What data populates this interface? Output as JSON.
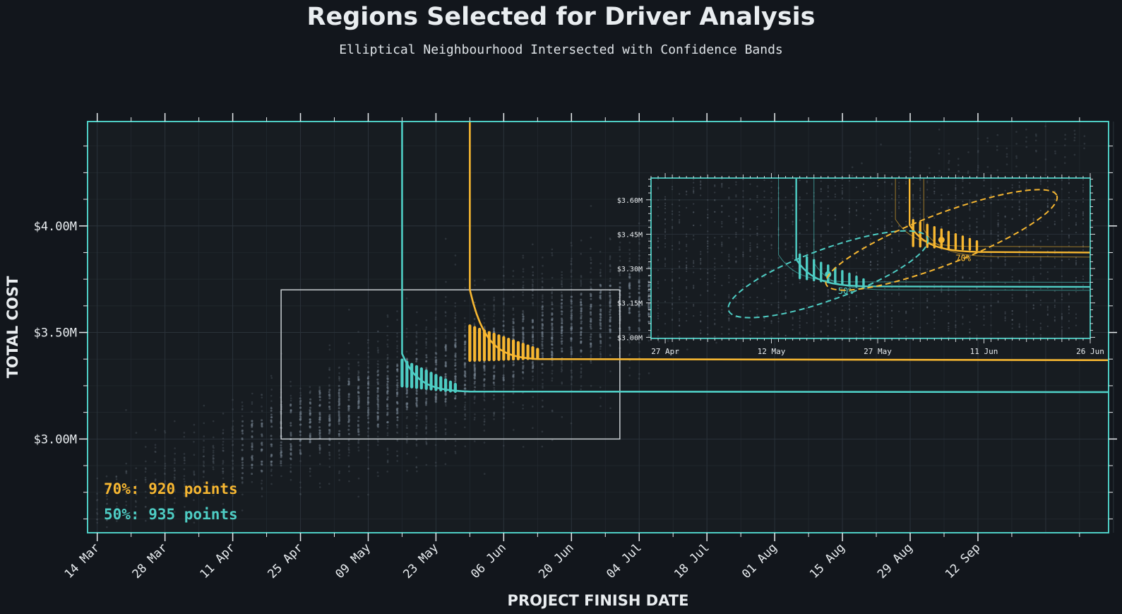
{
  "chart_data": {
    "type": "scatter",
    "title": "Regions Selected for Driver Analysis",
    "subtitle": "Elliptical Neighbourhood Intersected with Confidence Bands",
    "xlabel": "PROJECT FINISH DATE",
    "ylabel": "TOTAL COST",
    "x_tick_labels": [
      "14 Mar",
      "28 Mar",
      "11 Apr",
      "25 Apr",
      "09 May",
      "23 May",
      "06 Jun",
      "20 Jun",
      "04 Jul",
      "18 Jul",
      "01 Aug",
      "15 Aug",
      "29 Aug",
      "12 Sep"
    ],
    "y_tick_labels": [
      "$3.00M",
      "$3.50M",
      "$4.00M"
    ],
    "y_ticks": [
      3.0,
      3.5,
      4.0
    ],
    "xlim_days": [
      -2,
      209
    ],
    "ylim": [
      2.56,
      4.49
    ],
    "zoom_box": {
      "x_from": "21 Apr",
      "x_to": "30 Jun",
      "y_from": 3.0,
      "y_to": 3.7
    },
    "series": [
      {
        "name": "70%",
        "color": "#f7b731",
        "label": "70%: 920 points",
        "band_corner_date": "30 May",
        "band_floor": 3.37,
        "selection": {
          "x_from": "30 May",
          "x_to": "13 Jun",
          "y_center_from": 3.45,
          "y_center_to": 3.4
        }
      },
      {
        "name": "50%",
        "color": "#4ecdc4",
        "label": "50%: 935 points",
        "band_corner_date": "16 May",
        "band_floor": 3.22,
        "selection": {
          "x_from": "16 May",
          "x_to": "27 May",
          "y_center_from": 3.31,
          "y_center_to": 3.24
        }
      }
    ],
    "inset": {
      "x_tick_labels": [
        "27 Apr",
        "12 May",
        "27 May",
        "11 Jun",
        "26 Jun"
      ],
      "y_tick_labels": [
        "$3.00M",
        "$3.15M",
        "$3.30M",
        "$3.45M",
        "$3.60M"
      ],
      "y_ticks": [
        3.0,
        3.15,
        3.3,
        3.45,
        3.6
      ],
      "xlim_days": [
        42,
        104
      ],
      "ylim": [
        2.995,
        3.695
      ],
      "ellipses": [
        {
          "name": "50%",
          "label": "50%",
          "color": "#4ecdc4",
          "center": [
            "20 May",
            3.275
          ],
          "dash": true
        },
        {
          "name": "70%",
          "label": "70%",
          "color": "#f7b731",
          "center": [
            "05 Jun",
            3.425
          ],
          "dash": true
        }
      ]
    },
    "grid": true,
    "legend_placement": "bottom-left"
  },
  "colors": {
    "background": "#12161c",
    "plot": "#171c21",
    "frame": "#4ecdc4",
    "orange": "#f7b731",
    "teal": "#4ecdc4"
  }
}
